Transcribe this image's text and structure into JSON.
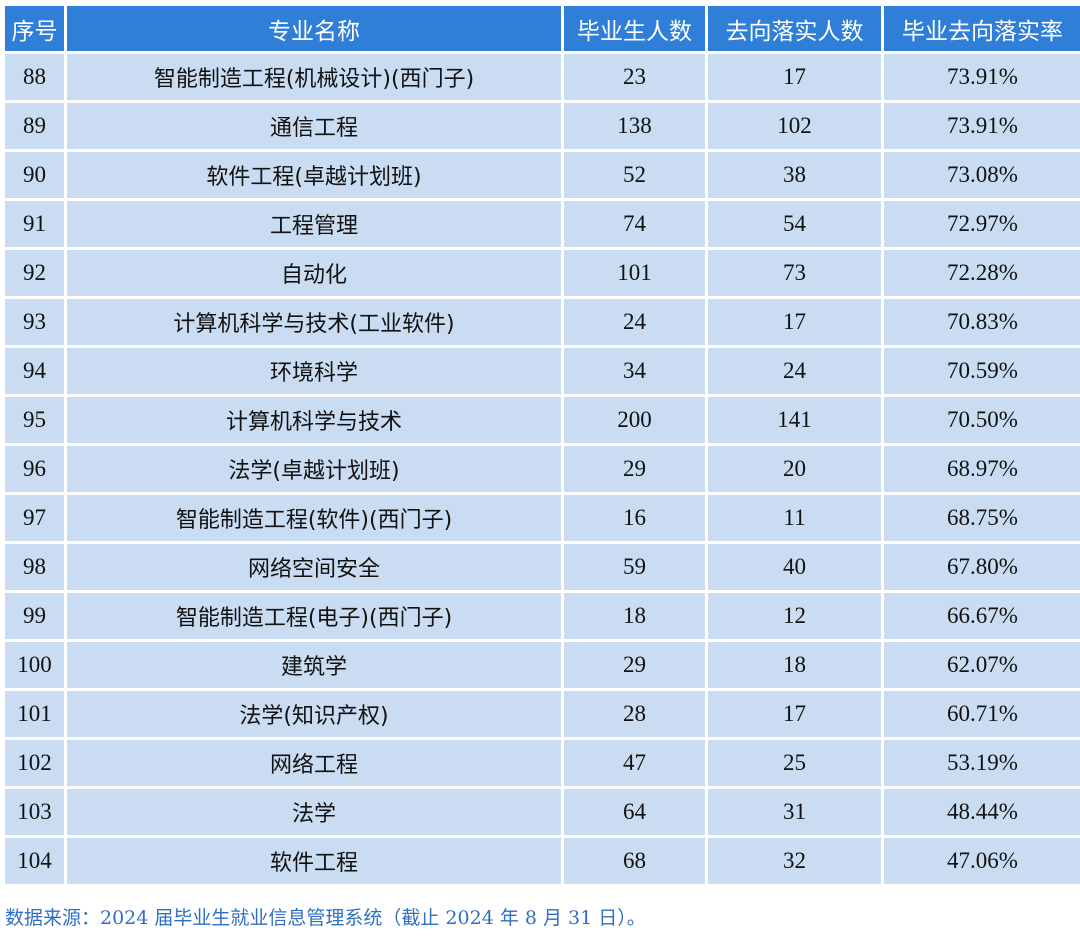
{
  "table": {
    "headers": [
      "序号",
      "专业名称",
      "毕业生人数",
      "去向落实人数",
      "毕业去向落实率"
    ],
    "rows": [
      [
        "88",
        "智能制造工程(机械设计)(西门子)",
        "23",
        "17",
        "73.91%"
      ],
      [
        "89",
        "通信工程",
        "138",
        "102",
        "73.91%"
      ],
      [
        "90",
        "软件工程(卓越计划班)",
        "52",
        "38",
        "73.08%"
      ],
      [
        "91",
        "工程管理",
        "74",
        "54",
        "72.97%"
      ],
      [
        "92",
        "自动化",
        "101",
        "73",
        "72.28%"
      ],
      [
        "93",
        "计算机科学与技术(工业软件)",
        "24",
        "17",
        "70.83%"
      ],
      [
        "94",
        "环境科学",
        "34",
        "24",
        "70.59%"
      ],
      [
        "95",
        "计算机科学与技术",
        "200",
        "141",
        "70.50%"
      ],
      [
        "96",
        "法学(卓越计划班)",
        "29",
        "20",
        "68.97%"
      ],
      [
        "97",
        "智能制造工程(软件)(西门子)",
        "16",
        "11",
        "68.75%"
      ],
      [
        "98",
        "网络空间安全",
        "59",
        "40",
        "67.80%"
      ],
      [
        "99",
        "智能制造工程(电子)(西门子)",
        "18",
        "12",
        "66.67%"
      ],
      [
        "100",
        "建筑学",
        "29",
        "18",
        "62.07%"
      ],
      [
        "101",
        "法学(知识产权)",
        "28",
        "17",
        "60.71%"
      ],
      [
        "102",
        "网络工程",
        "47",
        "25",
        "53.19%"
      ],
      [
        "103",
        "法学",
        "64",
        "31",
        "48.44%"
      ],
      [
        "104",
        "软件工程",
        "68",
        "32",
        "47.06%"
      ]
    ]
  },
  "footnote": "数据来源：2024 届毕业生就业信息管理系统（截止 2024 年 8 月 31 日）。",
  "colors": {
    "header_bg": "#2f7fd8",
    "cell_bg": "#c9dcf2",
    "footnote_text": "#2f6fc4"
  }
}
